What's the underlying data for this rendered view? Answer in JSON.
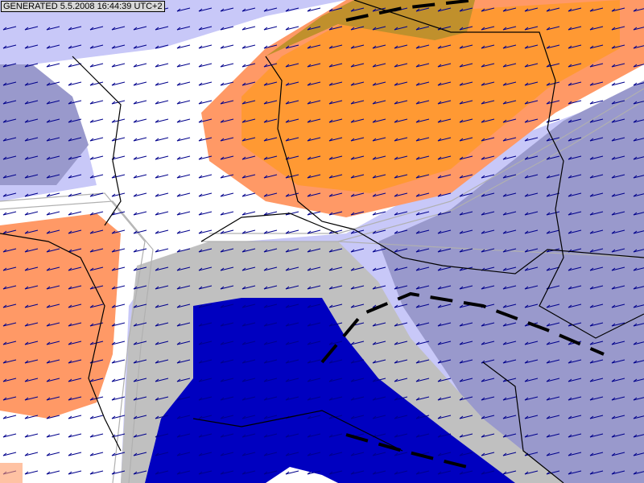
{
  "stamp": {
    "text": "GENERATED 5.5.2008 16:44:39 UTC+2"
  },
  "colors": {
    "light_lavender": "#c8c8f8",
    "slate_blue": "#9999cc",
    "white": "#ffffff",
    "orange": "#ff9933",
    "salmon": "#ff9966",
    "brown": "#c0902c",
    "gray": "#c0c0c0",
    "dark_blue": "#0000c0",
    "wind_arrows": "#00008b",
    "borders": "#000000"
  },
  "layers": [
    "filled-contours",
    "isolines",
    "wind-arrows",
    "country-borders",
    "front-lines"
  ]
}
